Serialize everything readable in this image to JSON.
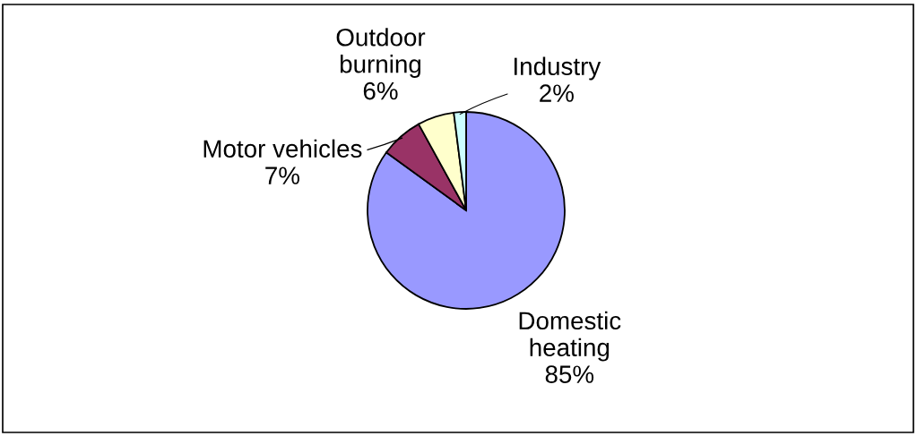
{
  "chart_data": {
    "type": "pie",
    "categories": [
      "Domestic\nheating",
      "Motor vehicles",
      "Outdoor\nburning",
      "Industry"
    ],
    "values": [
      85,
      7,
      6,
      2
    ],
    "colors": [
      "#9999ff",
      "#993366",
      "#ffffcc",
      "#ccffff"
    ],
    "value_labels": [
      "85%",
      "7%",
      "6%",
      "2%"
    ]
  }
}
